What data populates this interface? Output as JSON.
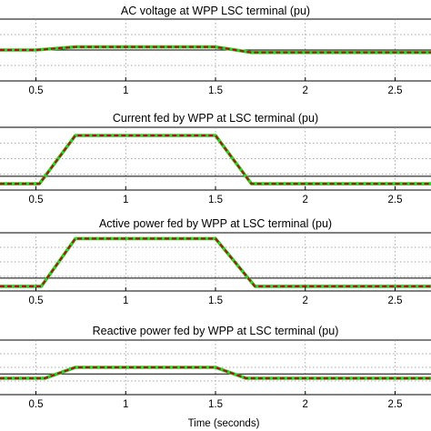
{
  "xlabel": "Time (seconds)",
  "xticks": [
    "0.5",
    "1",
    "1.5",
    "2",
    "2.5"
  ],
  "series_colors": {
    "measured": "#27d827",
    "reference": "#b31212"
  },
  "chart_data": [
    {
      "type": "line",
      "title": "AC voltage at WPP LSC terminal (pu)",
      "xlim": [
        0.3,
        2.7
      ],
      "ylim": [
        0,
        1
      ],
      "grid": true,
      "ref_level": 0.5,
      "series": [
        {
          "values": [
            [
              0.3,
              0.5
            ],
            [
              0.5,
              0.5
            ],
            [
              0.72,
              0.55
            ],
            [
              1.5,
              0.55
            ],
            [
              1.7,
              0.46
            ],
            [
              2.7,
              0.46
            ]
          ]
        },
        {
          "values": [
            [
              0.3,
              0.5
            ],
            [
              0.5,
              0.5
            ],
            [
              0.72,
              0.55
            ],
            [
              1.5,
              0.55
            ],
            [
              1.7,
              0.46
            ],
            [
              2.7,
              0.46
            ]
          ]
        }
      ]
    },
    {
      "type": "line",
      "title": "Current fed by WPP at LSC terminal (pu)",
      "xlim": [
        0.3,
        2.7
      ],
      "ylim": [
        0,
        1
      ],
      "grid": true,
      "ref_level": 0.22,
      "series": [
        {
          "values": [
            [
              0.3,
              0.1
            ],
            [
              0.52,
              0.1
            ],
            [
              0.72,
              0.87
            ],
            [
              1.5,
              0.87
            ],
            [
              1.7,
              0.1
            ],
            [
              2.7,
              0.1
            ]
          ]
        },
        {
          "values": [
            [
              0.3,
              0.1
            ],
            [
              0.52,
              0.1
            ],
            [
              0.72,
              0.87
            ],
            [
              1.5,
              0.87
            ],
            [
              1.7,
              0.1
            ],
            [
              2.7,
              0.1
            ]
          ]
        }
      ]
    },
    {
      "type": "line",
      "title": "Active power fed by WPP at LSC terminal (pu)",
      "xlim": [
        0.3,
        2.7
      ],
      "ylim": [
        0,
        1
      ],
      "grid": true,
      "ref_level": 0.22,
      "series": [
        {
          "values": [
            [
              0.3,
              0.08
            ],
            [
              0.53,
              0.08
            ],
            [
              0.72,
              0.9
            ],
            [
              1.5,
              0.9
            ],
            [
              1.72,
              0.08
            ],
            [
              2.7,
              0.08
            ]
          ]
        },
        {
          "values": [
            [
              0.3,
              0.08
            ],
            [
              0.53,
              0.08
            ],
            [
              0.72,
              0.9
            ],
            [
              1.5,
              0.9
            ],
            [
              1.72,
              0.08
            ],
            [
              2.7,
              0.08
            ]
          ]
        }
      ]
    },
    {
      "type": "line",
      "title": "Reactive power fed by WPP at LSC terminal (pu)",
      "xlim": [
        0.3,
        2.7
      ],
      "ylim": [
        0,
        1
      ],
      "grid": true,
      "ref_level": 0.38,
      "series": [
        {
          "values": [
            [
              0.3,
              0.3
            ],
            [
              0.55,
              0.3
            ],
            [
              0.72,
              0.5
            ],
            [
              1.5,
              0.5
            ],
            [
              1.67,
              0.3
            ],
            [
              2.7,
              0.3
            ]
          ]
        },
        {
          "values": [
            [
              0.3,
              0.3
            ],
            [
              0.55,
              0.3
            ],
            [
              0.72,
              0.5
            ],
            [
              1.5,
              0.5
            ],
            [
              1.67,
              0.3
            ],
            [
              2.7,
              0.3
            ]
          ]
        }
      ]
    }
  ]
}
